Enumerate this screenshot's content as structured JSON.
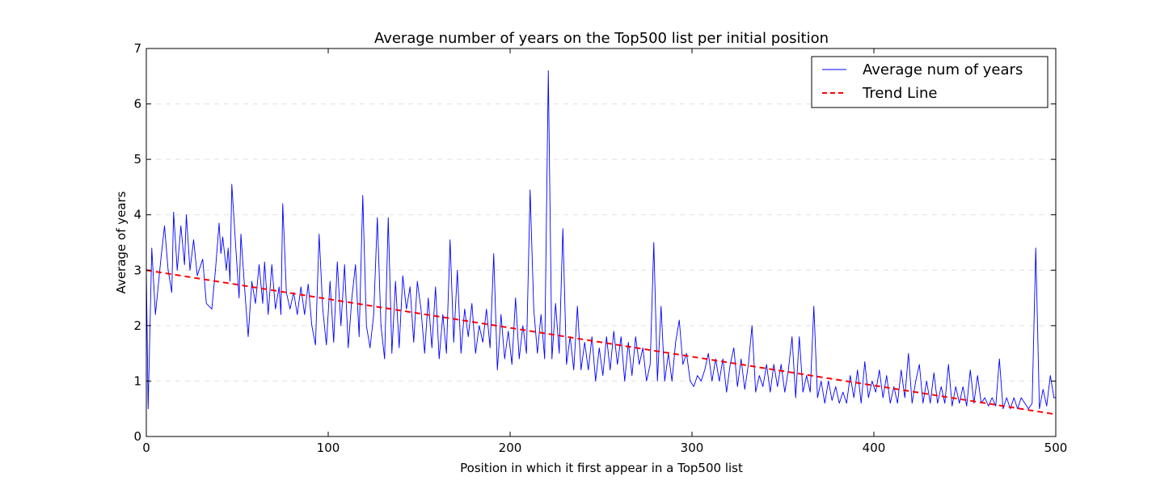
{
  "chart_data": {
    "type": "line",
    "title": "Average number of years on the Top500 list per initial position",
    "xlabel": "Position in which it first appear in a Top500 list",
    "ylabel": "Average of years",
    "xlim": [
      0,
      500
    ],
    "ylim": [
      0,
      7
    ],
    "xticks": [
      "0",
      "100",
      "200",
      "300",
      "400",
      "500"
    ],
    "yticks": [
      "0",
      "1",
      "2",
      "3",
      "4",
      "5",
      "6",
      "7"
    ],
    "grid": "horizontal dashed",
    "legend": {
      "position": "top-right"
    },
    "series": [
      {
        "name": "Average num of years",
        "color": "#0000ff",
        "style": "solid",
        "anchors": [
          [
            0,
            3.0
          ],
          [
            1,
            0.5
          ],
          [
            3,
            3.4
          ],
          [
            5,
            2.2
          ],
          [
            8,
            3.2
          ],
          [
            10,
            3.8
          ],
          [
            12,
            3.0
          ],
          [
            14,
            2.6
          ],
          [
            15,
            4.05
          ],
          [
            17,
            3.0
          ],
          [
            19,
            3.8
          ],
          [
            21,
            3.1
          ],
          [
            22,
            4.0
          ],
          [
            24,
            3.0
          ],
          [
            26,
            3.55
          ],
          [
            28,
            2.9
          ],
          [
            31,
            3.2
          ],
          [
            33,
            2.4
          ],
          [
            36,
            2.3
          ],
          [
            38,
            3.0
          ],
          [
            40,
            3.85
          ],
          [
            41,
            3.3
          ],
          [
            42,
            3.6
          ],
          [
            44,
            3.0
          ],
          [
            45,
            3.4
          ],
          [
            46,
            2.8
          ],
          [
            47,
            4.55
          ],
          [
            49,
            3.5
          ],
          [
            51,
            2.5
          ],
          [
            52,
            3.65
          ],
          [
            54,
            2.7
          ],
          [
            56,
            1.8
          ],
          [
            58,
            2.8
          ],
          [
            60,
            2.4
          ],
          [
            62,
            3.1
          ],
          [
            64,
            2.4
          ],
          [
            65,
            3.15
          ],
          [
            67,
            2.2
          ],
          [
            69,
            3.1
          ],
          [
            71,
            2.3
          ],
          [
            73,
            2.7
          ],
          [
            74,
            2.2
          ],
          [
            75,
            4.2
          ],
          [
            77,
            2.6
          ],
          [
            79,
            2.3
          ],
          [
            81,
            2.6
          ],
          [
            83,
            2.2
          ],
          [
            85,
            2.7
          ],
          [
            87,
            2.2
          ],
          [
            89,
            2.75
          ],
          [
            91,
            2.0
          ],
          [
            93,
            1.65
          ],
          [
            95,
            3.65
          ],
          [
            97,
            2.3
          ],
          [
            99,
            1.65
          ],
          [
            101,
            2.8
          ],
          [
            103,
            1.7
          ],
          [
            105,
            3.15
          ],
          [
            107,
            2.0
          ],
          [
            109,
            3.1
          ],
          [
            111,
            1.6
          ],
          [
            113,
            2.5
          ],
          [
            115,
            3.1
          ],
          [
            117,
            1.8
          ],
          [
            119,
            4.35
          ],
          [
            121,
            2.0
          ],
          [
            123,
            1.6
          ],
          [
            125,
            2.2
          ],
          [
            127,
            3.95
          ],
          [
            129,
            2.0
          ],
          [
            131,
            1.4
          ],
          [
            133,
            3.95
          ],
          [
            135,
            1.5
          ],
          [
            137,
            2.8
          ],
          [
            139,
            1.6
          ],
          [
            141,
            2.9
          ],
          [
            143,
            2.3
          ],
          [
            145,
            2.7
          ],
          [
            147,
            1.7
          ],
          [
            149,
            2.8
          ],
          [
            151,
            2.3
          ],
          [
            153,
            1.5
          ],
          [
            155,
            2.5
          ],
          [
            157,
            1.6
          ],
          [
            159,
            2.7
          ],
          [
            161,
            1.4
          ],
          [
            163,
            2.2
          ],
          [
            165,
            1.5
          ],
          [
            167,
            3.55
          ],
          [
            169,
            1.7
          ],
          [
            171,
            3.0
          ],
          [
            173,
            1.5
          ],
          [
            175,
            2.3
          ],
          [
            177,
            1.8
          ],
          [
            179,
            2.4
          ],
          [
            181,
            1.5
          ],
          [
            183,
            2.0
          ],
          [
            185,
            1.7
          ],
          [
            187,
            2.3
          ],
          [
            189,
            1.6
          ],
          [
            191,
            3.3
          ],
          [
            193,
            1.2
          ],
          [
            195,
            2.2
          ],
          [
            197,
            1.4
          ],
          [
            199,
            1.9
          ],
          [
            201,
            1.3
          ],
          [
            203,
            2.5
          ],
          [
            205,
            1.4
          ],
          [
            207,
            2.0
          ],
          [
            209,
            1.5
          ],
          [
            211,
            4.45
          ],
          [
            213,
            2.3
          ],
          [
            215,
            1.5
          ],
          [
            217,
            2.2
          ],
          [
            219,
            1.4
          ],
          [
            221,
            6.6
          ],
          [
            223,
            1.4
          ],
          [
            225,
            2.4
          ],
          [
            227,
            1.5
          ],
          [
            229,
            3.75
          ],
          [
            231,
            1.3
          ],
          [
            233,
            1.8
          ],
          [
            235,
            1.2
          ],
          [
            237,
            2.35
          ],
          [
            239,
            1.2
          ],
          [
            241,
            1.7
          ],
          [
            243,
            1.2
          ],
          [
            245,
            1.8
          ],
          [
            247,
            1.0
          ],
          [
            249,
            1.6
          ],
          [
            251,
            1.1
          ],
          [
            253,
            1.8
          ],
          [
            255,
            1.2
          ],
          [
            257,
            1.9
          ],
          [
            259,
            1.3
          ],
          [
            261,
            1.8
          ],
          [
            263,
            1.0
          ],
          [
            265,
            1.7
          ],
          [
            267,
            1.1
          ],
          [
            269,
            1.8
          ],
          [
            271,
            1.3
          ],
          [
            273,
            1.6
          ],
          [
            275,
            1.0
          ],
          [
            277,
            1.3
          ],
          [
            279,
            3.5
          ],
          [
            281,
            1.0
          ],
          [
            283,
            2.35
          ],
          [
            285,
            1.0
          ],
          [
            287,
            1.5
          ],
          [
            289,
            1.0
          ],
          [
            291,
            1.7
          ],
          [
            293,
            2.1
          ],
          [
            295,
            1.3
          ],
          [
            297,
            1.5
          ],
          [
            299,
            1.0
          ],
          [
            301,
            0.9
          ],
          [
            303,
            1.1
          ],
          [
            305,
            1.0
          ],
          [
            307,
            1.2
          ],
          [
            309,
            1.5
          ],
          [
            311,
            1.0
          ],
          [
            313,
            1.4
          ],
          [
            315,
            1.0
          ],
          [
            317,
            1.4
          ],
          [
            319,
            0.8
          ],
          [
            321,
            1.3
          ],
          [
            323,
            1.6
          ],
          [
            325,
            0.9
          ],
          [
            327,
            1.4
          ],
          [
            329,
            0.85
          ],
          [
            331,
            1.3
          ],
          [
            333,
            2.0
          ],
          [
            335,
            0.8
          ],
          [
            337,
            1.1
          ],
          [
            339,
            0.9
          ],
          [
            341,
            1.3
          ],
          [
            343,
            0.8
          ],
          [
            345,
            1.3
          ],
          [
            347,
            0.9
          ],
          [
            349,
            1.3
          ],
          [
            351,
            0.8
          ],
          [
            353,
            1.2
          ],
          [
            355,
            1.8
          ],
          [
            357,
            0.7
          ],
          [
            359,
            1.8
          ],
          [
            361,
            0.8
          ],
          [
            363,
            1.1
          ],
          [
            365,
            0.8
          ],
          [
            367,
            2.35
          ],
          [
            369,
            0.7
          ],
          [
            371,
            1.0
          ],
          [
            373,
            0.6
          ],
          [
            375,
            1.0
          ],
          [
            377,
            0.65
          ],
          [
            379,
            0.9
          ],
          [
            381,
            0.6
          ],
          [
            383,
            0.8
          ],
          [
            385,
            0.6
          ],
          [
            387,
            1.1
          ],
          [
            389,
            0.7
          ],
          [
            391,
            1.2
          ],
          [
            393,
            0.6
          ],
          [
            395,
            1.35
          ],
          [
            397,
            0.7
          ],
          [
            399,
            1.0
          ],
          [
            401,
            0.8
          ],
          [
            403,
            1.2
          ],
          [
            405,
            0.7
          ],
          [
            407,
            1.1
          ],
          [
            409,
            0.6
          ],
          [
            411,
            0.9
          ],
          [
            413,
            0.6
          ],
          [
            415,
            1.2
          ],
          [
            417,
            0.7
          ],
          [
            419,
            1.5
          ],
          [
            421,
            0.6
          ],
          [
            423,
            1.0
          ],
          [
            425,
            1.3
          ],
          [
            427,
            0.6
          ],
          [
            429,
            1.0
          ],
          [
            431,
            0.6
          ],
          [
            433,
            1.15
          ],
          [
            435,
            0.6
          ],
          [
            437,
            0.9
          ],
          [
            439,
            0.6
          ],
          [
            441,
            1.3
          ],
          [
            443,
            0.55
          ],
          [
            445,
            0.9
          ],
          [
            447,
            0.6
          ],
          [
            449,
            0.9
          ],
          [
            451,
            0.55
          ],
          [
            453,
            1.2
          ],
          [
            455,
            0.6
          ],
          [
            457,
            1.1
          ],
          [
            459,
            0.6
          ],
          [
            461,
            0.7
          ],
          [
            463,
            0.55
          ],
          [
            465,
            0.7
          ],
          [
            467,
            0.55
          ],
          [
            469,
            1.4
          ],
          [
            471,
            0.5
          ],
          [
            473,
            0.7
          ],
          [
            475,
            0.5
          ],
          [
            477,
            0.7
          ],
          [
            479,
            0.5
          ],
          [
            481,
            0.7
          ],
          [
            483,
            0.6
          ],
          [
            485,
            0.5
          ],
          [
            487,
            0.6
          ],
          [
            489,
            3.4
          ],
          [
            491,
            0.5
          ],
          [
            493,
            0.85
          ],
          [
            495,
            0.55
          ],
          [
            497,
            1.1
          ],
          [
            499,
            0.7
          ],
          [
            500,
            0.7
          ]
        ]
      },
      {
        "name": "Trend Line",
        "color": "#ff0000",
        "style": "dashed",
        "points": [
          [
            0,
            3.0
          ],
          [
            500,
            0.4
          ]
        ]
      }
    ]
  }
}
